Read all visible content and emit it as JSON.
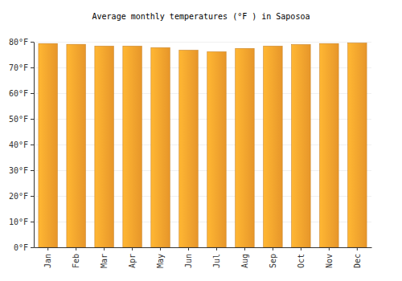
{
  "chart_data": {
    "type": "bar",
    "title": "Average monthly temperatures (°F ) in Saposoa",
    "categories": [
      "Jan",
      "Feb",
      "Mar",
      "Apr",
      "May",
      "Jun",
      "Jul",
      "Aug",
      "Sep",
      "Oct",
      "Nov",
      "Dec"
    ],
    "values": [
      79.3,
      79.0,
      78.3,
      78.3,
      77.7,
      76.7,
      76.1,
      77.4,
      78.3,
      78.9,
      79.3,
      79.5
    ],
    "color": "#fca42e",
    "ylim": [
      0,
      80
    ],
    "yticks": [
      {
        "value": 0,
        "label": "0°F"
      },
      {
        "value": 10,
        "label": "10°F"
      },
      {
        "value": 20,
        "label": "20°F"
      },
      {
        "value": 30,
        "label": "30°F"
      },
      {
        "value": 40,
        "label": "40°F"
      },
      {
        "value": 50,
        "label": "50°F"
      },
      {
        "value": 60,
        "label": "60°F"
      },
      {
        "value": 70,
        "label": "70°F"
      },
      {
        "value": 80,
        "label": "80°F"
      }
    ],
    "grid": true
  }
}
